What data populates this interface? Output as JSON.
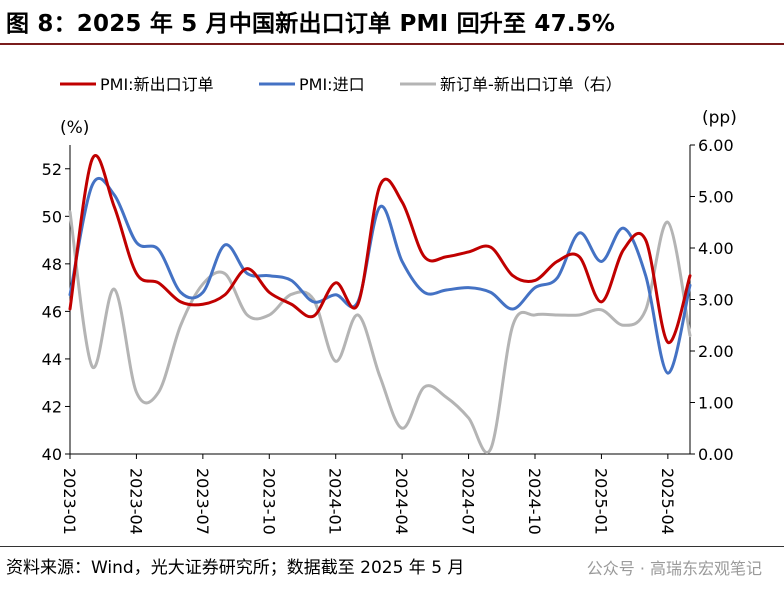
{
  "figure": {
    "title": "图 8：2025 年 5 月中国新出口订单 PMI 回升至 47.5%",
    "source": "资料来源：Wind，光大证券研究所；数据截至 2025 年 5 月",
    "watermark": "公众号 · 高瑞东宏观笔记"
  },
  "chart_data": {
    "type": "line",
    "left_unit": "(%)",
    "right_unit": "(pp)",
    "ylim_left": [
      40,
      53
    ],
    "ylim_right": [
      0,
      6
    ],
    "left_ticks": [
      "52",
      "50",
      "48",
      "46",
      "44",
      "42",
      "40"
    ],
    "right_ticks": [
      "6.00",
      "5.00",
      "4.00",
      "3.00",
      "2.00",
      "1.00",
      "0.00"
    ],
    "x_tick_labels": [
      "2023-01",
      "2023-04",
      "2023-07",
      "2023-10",
      "2024-01",
      "2024-04",
      "2024-07",
      "2024-10",
      "2025-01",
      "2025-04"
    ],
    "x": [
      "2023-01",
      "2023-02",
      "2023-03",
      "2023-04",
      "2023-05",
      "2023-06",
      "2023-07",
      "2023-08",
      "2023-09",
      "2023-10",
      "2023-11",
      "2023-12",
      "2024-01",
      "2024-02",
      "2024-03",
      "2024-04",
      "2024-05",
      "2024-06",
      "2024-07",
      "2024-08",
      "2024-09",
      "2024-10",
      "2024-11",
      "2024-12",
      "2025-01",
      "2025-02",
      "2025-03",
      "2025-04",
      "2025-05"
    ],
    "legend_position": "top",
    "series": [
      {
        "name": "PMI:新出口订单",
        "axis": "left",
        "color": "#c00000",
        "values": [
          46.1,
          52.4,
          50.4,
          47.6,
          47.2,
          46.4,
          46.3,
          46.7,
          47.8,
          46.8,
          46.3,
          45.8,
          47.2,
          46.3,
          51.3,
          50.6,
          48.3,
          48.3,
          48.5,
          48.7,
          47.5,
          47.3,
          48.1,
          48.3,
          46.4,
          48.6,
          49.0,
          44.7,
          47.5
        ]
      },
      {
        "name": "PMI:进口",
        "axis": "left",
        "color": "#4472c4",
        "values": [
          46.7,
          51.3,
          50.9,
          48.9,
          48.6,
          46.8,
          46.8,
          48.8,
          47.6,
          47.5,
          47.3,
          46.4,
          46.7,
          46.4,
          50.4,
          48.1,
          46.8,
          46.9,
          47.0,
          46.8,
          46.1,
          47.0,
          47.4,
          49.3,
          48.1,
          49.5,
          47.5,
          43.4,
          47.1
        ]
      },
      {
        "name": "新订单-新出口订单（右）",
        "axis": "right",
        "color": "#b4b4b4",
        "values": [
          4.7,
          1.7,
          3.2,
          1.2,
          1.2,
          2.5,
          3.3,
          3.5,
          2.7,
          2.7,
          3.1,
          3.0,
          1.8,
          2.7,
          1.5,
          0.5,
          1.3,
          1.1,
          0.7,
          0.1,
          2.5,
          2.7,
          2.7,
          2.7,
          2.8,
          2.5,
          2.8,
          4.5,
          2.3
        ]
      }
    ]
  }
}
